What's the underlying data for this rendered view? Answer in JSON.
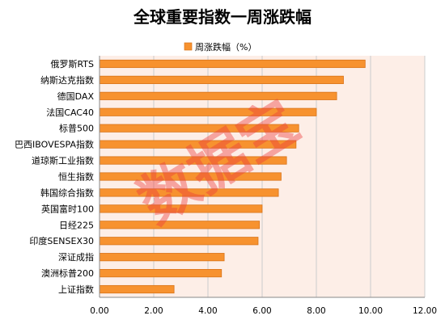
{
  "chart_data": {
    "type": "bar",
    "orientation": "horizontal",
    "title": "全球重要指数一周涨跌幅",
    "legend": {
      "label": "周涨跌幅（%）",
      "position": "top"
    },
    "categories": [
      "俄罗斯RTS",
      "纳斯达克指数",
      "德国DAX",
      "法国CAC40",
      "标普500",
      "巴西IBOVESPA指数",
      "道琼斯工业指数",
      "恒生指数",
      "韩国综合指数",
      "英国富时100",
      "日经225",
      "印度SENSEX30",
      "深证成指",
      "澳洲标普200",
      "上证指数"
    ],
    "series": [
      {
        "name": "周涨跌幅（%）",
        "values": [
          9.8,
          9.0,
          8.75,
          8.0,
          7.35,
          7.25,
          6.9,
          6.7,
          6.6,
          6.0,
          5.9,
          5.85,
          4.6,
          4.5,
          2.75
        ]
      }
    ],
    "xlim": [
      0,
      12
    ],
    "xticks": [
      "0.00",
      "2.00",
      "4.00",
      "6.00",
      "8.00",
      "10.00",
      "12.00"
    ],
    "grid": true,
    "colors": {
      "bar": "#f7922f",
      "bar_edge": "#d9741a",
      "plot_bg": "#fdeee7",
      "grid": "#cccccc"
    },
    "watermark": "数据宝"
  }
}
